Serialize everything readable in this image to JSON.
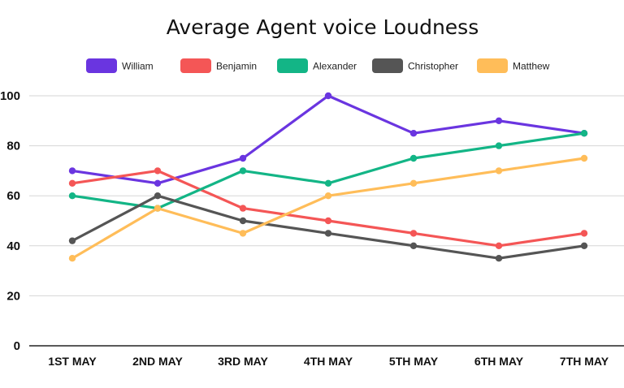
{
  "chart_data": {
    "type": "line",
    "title": "Average Agent voice Loudness",
    "xlabel": "",
    "ylabel": "",
    "categories": [
      "1ST MAY",
      "2ND MAY",
      "3RD MAY",
      "4TH MAY",
      "5TH MAY",
      "6TH MAY",
      "7TH MAY"
    ],
    "ylim": [
      0,
      100
    ],
    "yticks": [
      0,
      20,
      40,
      60,
      80,
      100
    ],
    "grid": true,
    "legend_position": "top",
    "series": [
      {
        "name": "William",
        "color": "#6a35e0",
        "values": [
          70,
          65,
          75,
          100,
          85,
          90,
          85
        ]
      },
      {
        "name": "Benjamin",
        "color": "#f45656",
        "values": [
          65,
          70,
          55,
          50,
          45,
          40,
          45
        ]
      },
      {
        "name": "Alexander",
        "color": "#13b586",
        "values": [
          60,
          55,
          70,
          65,
          75,
          80,
          85
        ]
      },
      {
        "name": "Christopher",
        "color": "#555555",
        "values": [
          42,
          60,
          50,
          45,
          40,
          35,
          40
        ]
      },
      {
        "name": "Matthew",
        "color": "#ffbd59",
        "values": [
          35,
          55,
          45,
          60,
          65,
          70,
          75
        ]
      }
    ]
  }
}
